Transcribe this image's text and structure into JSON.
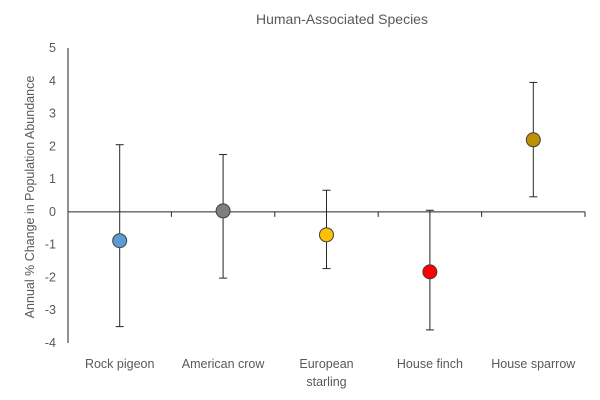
{
  "chart_data": {
    "type": "scatter",
    "title": "Human-Associated Species",
    "xlabel": "",
    "ylabel": "Annual % Change in Population Abundance",
    "ylim": [
      -4,
      5
    ],
    "yticks": [
      "5",
      "4",
      "3",
      "2",
      "1",
      "0",
      "-1",
      "-2",
      "-3",
      "-4"
    ],
    "grid": false,
    "legend": "none",
    "categories": [
      {
        "lines": [
          "Rock pigeon"
        ]
      },
      {
        "lines": [
          "American crow"
        ]
      },
      {
        "lines": [
          "European",
          "starling"
        ]
      },
      {
        "lines": [
          "House finch"
        ]
      },
      {
        "lines": [
          "House sparrow"
        ]
      }
    ],
    "points": [
      {
        "value": -0.88,
        "lower": -3.5,
        "upper": 2.05,
        "color": "#5B9BD5"
      },
      {
        "value": 0.03,
        "lower": -2.02,
        "upper": 1.75,
        "color": "#7F7F7F"
      },
      {
        "value": -0.7,
        "lower": -1.73,
        "upper": 0.66,
        "color": "#FFC000"
      },
      {
        "value": -1.83,
        "lower": -3.6,
        "upper": 0.05,
        "color": "#FF0000"
      },
      {
        "value": 2.2,
        "lower": 0.46,
        "upper": 3.95,
        "color": "#BF9000"
      }
    ]
  }
}
